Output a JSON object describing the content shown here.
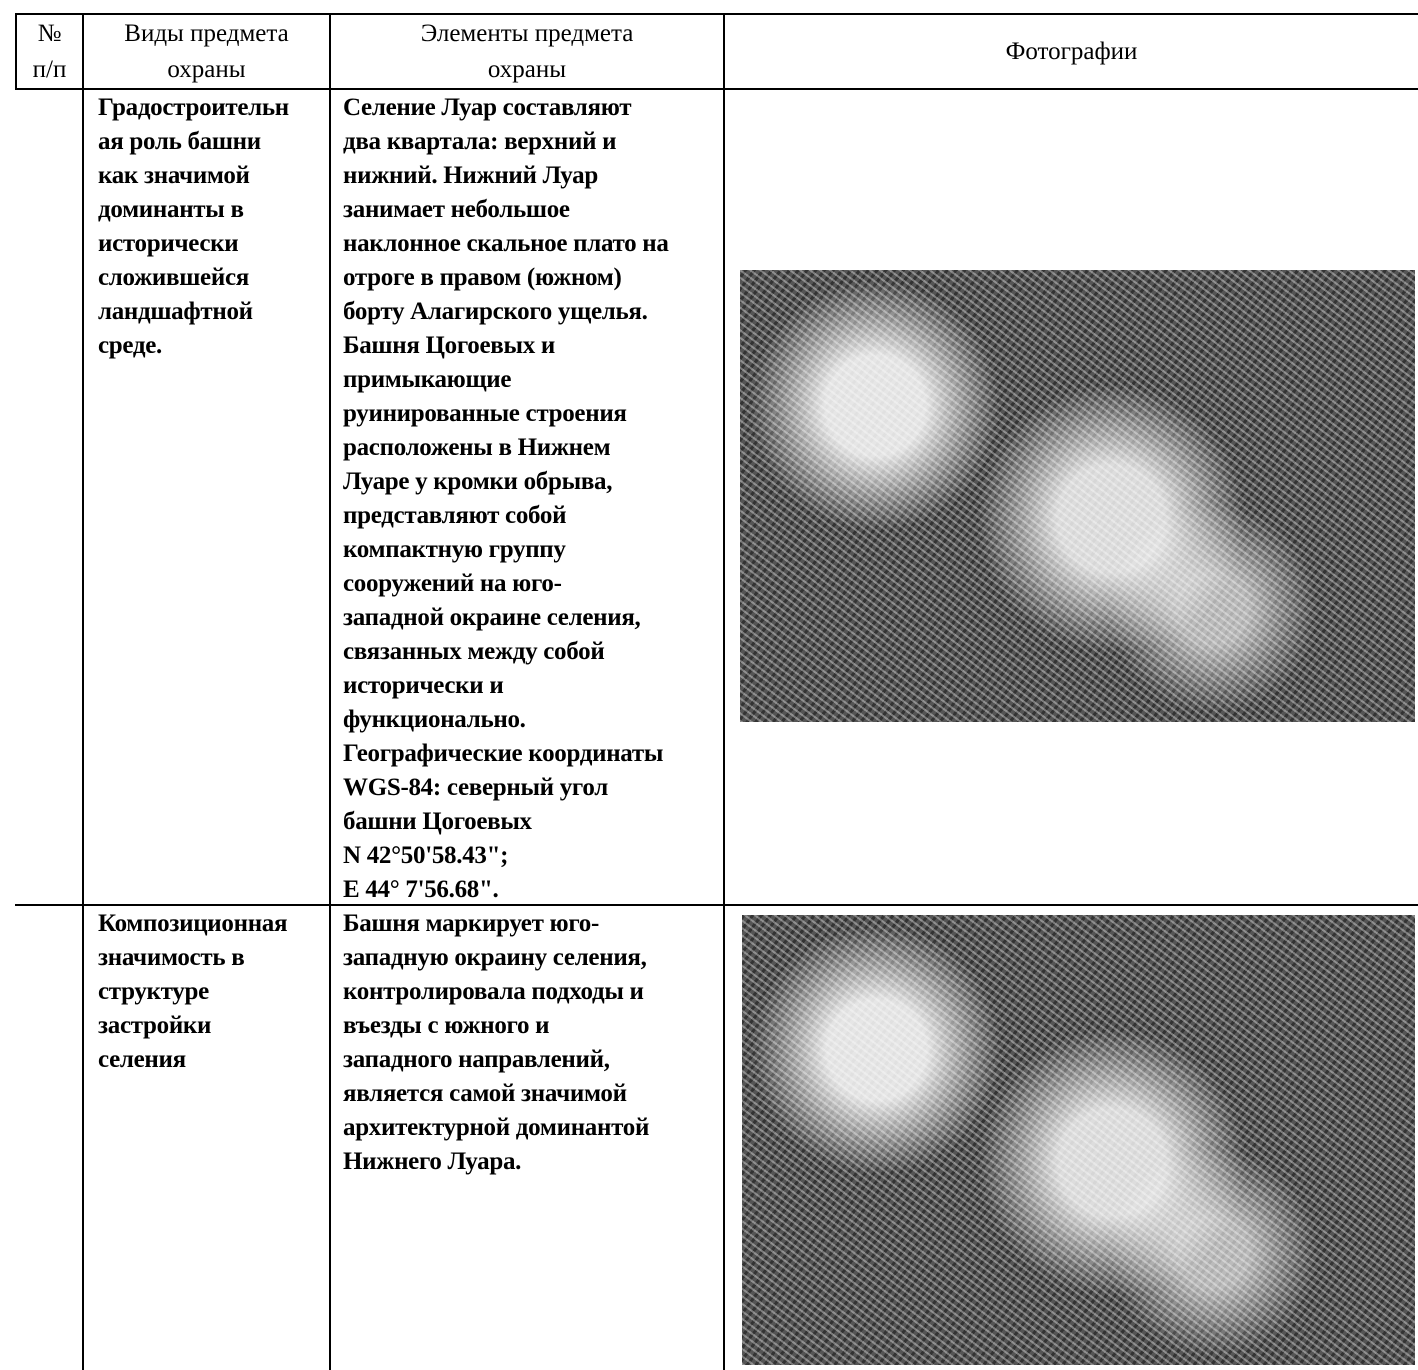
{
  "header": {
    "number": [
      "№",
      "п/п"
    ],
    "types": [
      "Виды предмета",
      "охраны"
    ],
    "elements": [
      "Элементы предмета",
      "охраны"
    ],
    "photos": "Фотографии"
  },
  "rows": [
    {
      "type": [
        "Градостроительн",
        "ая роль башни",
        "как значимой",
        "доминанты в",
        "исторически",
        "сложившейся",
        "ландшафтной",
        "среде."
      ],
      "elements": [
        "Селение Луар составляют",
        "два квартала: верхний и",
        "нижний. Нижний Луар",
        "занимает небольшое",
        "наклонное скальное плато на",
        "отроге в правом (южном)",
        "борту Алагирского ущелья.",
        "Башня Цогоевых и",
        "примыкающие",
        "руинированные строения",
        "расположены в Нижнем",
        "Луаре у кромки обрыва,",
        "представляют собой",
        "компактную группу",
        "сооружений на юго-",
        "западной окраине селения,",
        "связанных между собой",
        "исторически и",
        "функционально.",
        "Географические координаты",
        "WGS-84: северный угол",
        "башни Цогоевых",
        "N 42°50'58.43\";",
        "E 44° 7'56.68\"."
      ]
    },
    {
      "type": [
        "Композиционная",
        "значимость в",
        "структуре",
        "застройки",
        "селения"
      ],
      "elements": [
        "Башня маркирует юго-",
        "западную окраину селения,",
        "контролировала подходы и",
        "въезды с южного и",
        "западного направлений,",
        "является самой значимой",
        "архитектурной доминантой",
        "Нижнего Луара."
      ]
    }
  ]
}
